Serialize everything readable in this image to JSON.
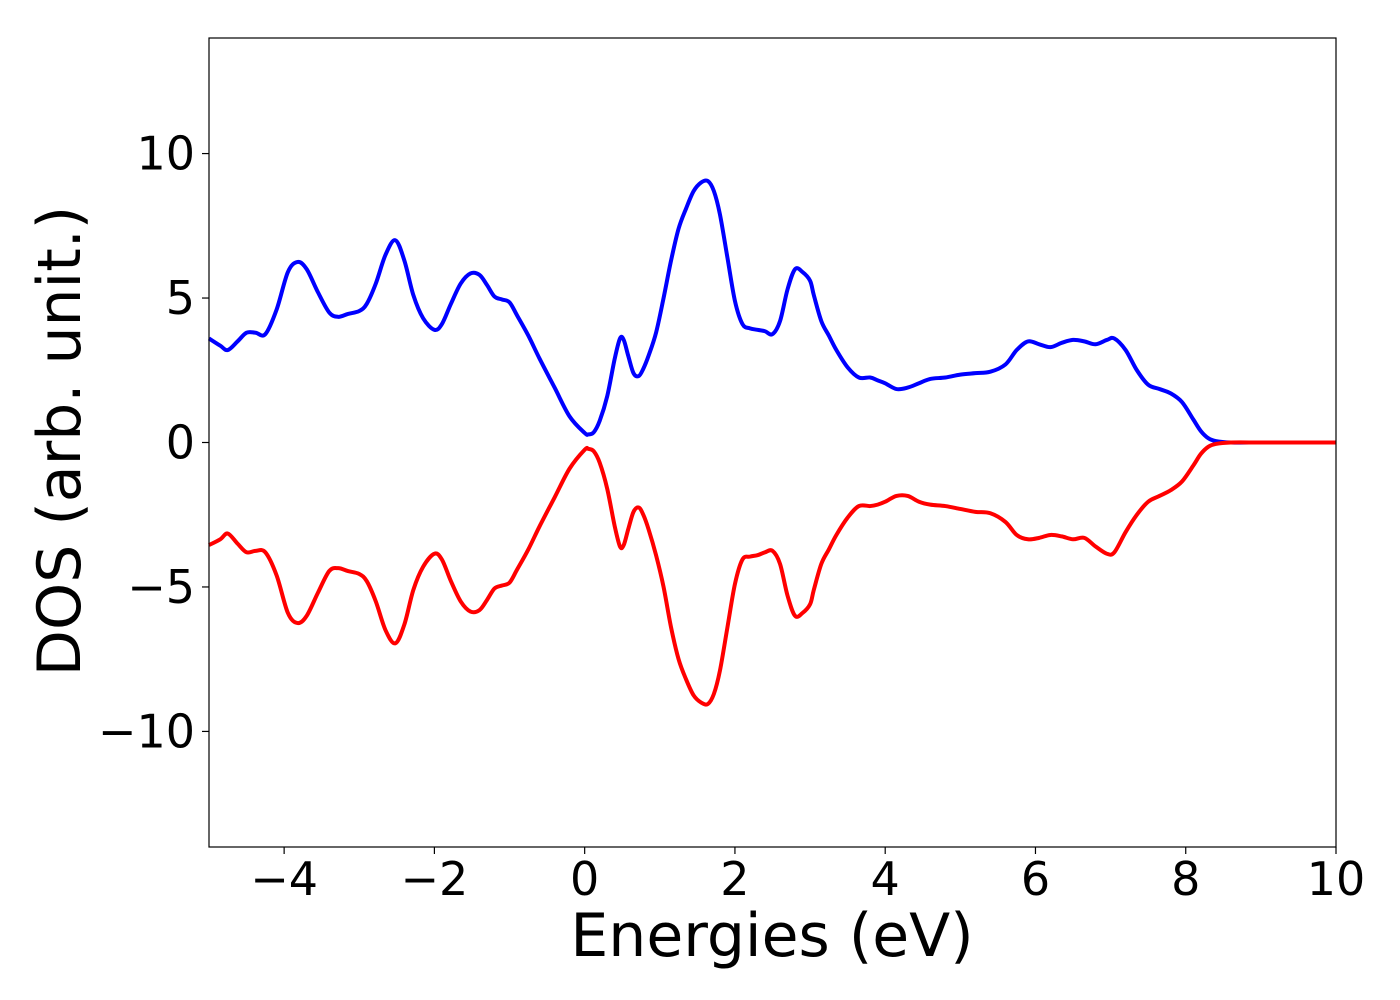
{
  "chart_data": {
    "type": "line",
    "xlabel": "Energies (eV)",
    "ylabel": "DOS (arb. unit.)",
    "xlim": [
      -5,
      10
    ],
    "ylim": [
      -14,
      14
    ],
    "xticks": [
      -4,
      -2,
      0,
      2,
      4,
      6,
      8,
      10
    ],
    "xtick_labels": [
      "−4",
      "−2",
      "0",
      "2",
      "4",
      "6",
      "8",
      "10"
    ],
    "yticks": [
      -10,
      -5,
      0,
      5,
      10
    ],
    "ytick_labels": [
      "−10",
      "−5",
      "0",
      "5",
      "10"
    ],
    "grid": false,
    "series": [
      {
        "color": "#0000ff",
        "x": [
          -5.0,
          -4.85,
          -4.75,
          -4.62,
          -4.5,
          -4.38,
          -4.25,
          -4.1,
          -3.95,
          -3.82,
          -3.7,
          -3.55,
          -3.4,
          -3.28,
          -3.15,
          -3.0,
          -2.9,
          -2.78,
          -2.65,
          -2.52,
          -2.4,
          -2.28,
          -2.15,
          -2.0,
          -1.9,
          -1.78,
          -1.65,
          -1.52,
          -1.4,
          -1.3,
          -1.2,
          -1.1,
          -1.0,
          -0.9,
          -0.75,
          -0.6,
          -0.4,
          -0.2,
          0.0,
          0.05,
          0.12,
          0.2,
          0.3,
          0.4,
          0.47,
          0.52,
          0.58,
          0.65,
          0.72,
          0.78,
          0.85,
          0.95,
          1.05,
          1.15,
          1.25,
          1.35,
          1.45,
          1.55,
          1.64,
          1.72,
          1.8,
          1.9,
          2.0,
          2.1,
          2.2,
          2.3,
          2.4,
          2.5,
          2.6,
          2.7,
          2.8,
          2.9,
          3.0,
          3.05,
          3.15,
          3.25,
          3.35,
          3.5,
          3.65,
          3.8,
          3.9,
          4.0,
          4.15,
          4.3,
          4.45,
          4.6,
          4.8,
          5.0,
          5.2,
          5.4,
          5.6,
          5.75,
          5.9,
          6.05,
          6.2,
          6.35,
          6.5,
          6.65,
          6.8,
          6.95,
          7.05,
          7.2,
          7.35,
          7.5,
          7.65,
          7.8,
          7.95,
          8.1,
          8.2,
          8.3,
          8.4,
          8.6,
          9.0,
          9.5,
          10.0
        ],
        "y": [
          3.6,
          3.35,
          3.2,
          3.5,
          3.8,
          3.8,
          3.75,
          4.6,
          5.9,
          6.25,
          6.0,
          5.2,
          4.5,
          4.35,
          4.45,
          4.55,
          4.8,
          5.5,
          6.5,
          7.0,
          6.3,
          5.1,
          4.3,
          3.9,
          4.1,
          4.8,
          5.5,
          5.85,
          5.8,
          5.45,
          5.05,
          4.95,
          4.85,
          4.4,
          3.7,
          2.9,
          1.9,
          0.9,
          0.33,
          0.28,
          0.35,
          0.75,
          1.6,
          2.9,
          3.6,
          3.55,
          3.0,
          2.4,
          2.3,
          2.55,
          3.0,
          3.8,
          5.0,
          6.3,
          7.4,
          8.1,
          8.7,
          9.0,
          9.05,
          8.7,
          7.9,
          6.4,
          4.9,
          4.1,
          3.95,
          3.9,
          3.85,
          3.75,
          4.2,
          5.3,
          6.0,
          5.9,
          5.6,
          5.1,
          4.2,
          3.7,
          3.2,
          2.6,
          2.25,
          2.25,
          2.15,
          2.05,
          1.85,
          1.9,
          2.05,
          2.2,
          2.25,
          2.35,
          2.4,
          2.45,
          2.7,
          3.2,
          3.5,
          3.4,
          3.3,
          3.45,
          3.55,
          3.5,
          3.4,
          3.55,
          3.6,
          3.2,
          2.5,
          2.0,
          1.85,
          1.7,
          1.4,
          0.8,
          0.4,
          0.15,
          0.05,
          0.0,
          0.0,
          0.0,
          0.0
        ]
      },
      {
        "color": "#ff0000",
        "x": [
          -5.0,
          -4.85,
          -4.75,
          -4.62,
          -4.5,
          -4.38,
          -4.25,
          -4.1,
          -3.95,
          -3.82,
          -3.7,
          -3.55,
          -3.4,
          -3.28,
          -3.15,
          -3.0,
          -2.9,
          -2.78,
          -2.65,
          -2.52,
          -2.4,
          -2.28,
          -2.15,
          -2.0,
          -1.9,
          -1.78,
          -1.65,
          -1.52,
          -1.4,
          -1.3,
          -1.2,
          -1.1,
          -1.0,
          -0.9,
          -0.75,
          -0.6,
          -0.4,
          -0.2,
          0.0,
          0.05,
          0.12,
          0.2,
          0.3,
          0.4,
          0.47,
          0.52,
          0.58,
          0.65,
          0.72,
          0.78,
          0.85,
          0.95,
          1.05,
          1.15,
          1.25,
          1.35,
          1.45,
          1.55,
          1.64,
          1.72,
          1.8,
          1.9,
          2.0,
          2.1,
          2.2,
          2.3,
          2.4,
          2.5,
          2.6,
          2.7,
          2.8,
          2.9,
          3.0,
          3.05,
          3.15,
          3.25,
          3.35,
          3.5,
          3.65,
          3.8,
          3.9,
          4.0,
          4.15,
          4.3,
          4.45,
          4.6,
          4.8,
          5.0,
          5.2,
          5.4,
          5.6,
          5.75,
          5.9,
          6.05,
          6.2,
          6.35,
          6.5,
          6.65,
          6.8,
          6.95,
          7.05,
          7.2,
          7.35,
          7.5,
          7.65,
          7.8,
          7.95,
          8.1,
          8.2,
          8.3,
          8.4,
          8.6,
          9.0,
          9.5,
          10.0
        ],
        "y": [
          -3.55,
          -3.35,
          -3.15,
          -3.5,
          -3.8,
          -3.75,
          -3.8,
          -4.6,
          -5.9,
          -6.25,
          -6.0,
          -5.2,
          -4.45,
          -4.35,
          -4.45,
          -4.55,
          -4.8,
          -5.5,
          -6.5,
          -6.95,
          -6.3,
          -5.1,
          -4.3,
          -3.85,
          -4.05,
          -4.8,
          -5.5,
          -5.85,
          -5.8,
          -5.45,
          -5.05,
          -4.95,
          -4.85,
          -4.4,
          -3.7,
          -2.9,
          -1.9,
          -0.9,
          -0.25,
          -0.22,
          -0.3,
          -0.7,
          -1.6,
          -2.9,
          -3.6,
          -3.55,
          -3.0,
          -2.4,
          -2.25,
          -2.5,
          -3.0,
          -3.9,
          -5.0,
          -6.4,
          -7.5,
          -8.2,
          -8.75,
          -9.0,
          -9.05,
          -8.7,
          -7.9,
          -6.4,
          -4.9,
          -4.05,
          -3.95,
          -3.9,
          -3.8,
          -3.75,
          -4.2,
          -5.3,
          -6.0,
          -5.9,
          -5.6,
          -5.1,
          -4.2,
          -3.7,
          -3.2,
          -2.6,
          -2.2,
          -2.2,
          -2.15,
          -2.05,
          -1.85,
          -1.85,
          -2.05,
          -2.15,
          -2.2,
          -2.3,
          -2.4,
          -2.45,
          -2.75,
          -3.2,
          -3.35,
          -3.3,
          -3.2,
          -3.25,
          -3.35,
          -3.3,
          -3.6,
          -3.85,
          -3.8,
          -3.1,
          -2.5,
          -2.05,
          -1.85,
          -1.65,
          -1.35,
          -0.8,
          -0.4,
          -0.15,
          -0.05,
          0.0,
          0.0,
          0.0,
          0.0
        ]
      }
    ]
  }
}
